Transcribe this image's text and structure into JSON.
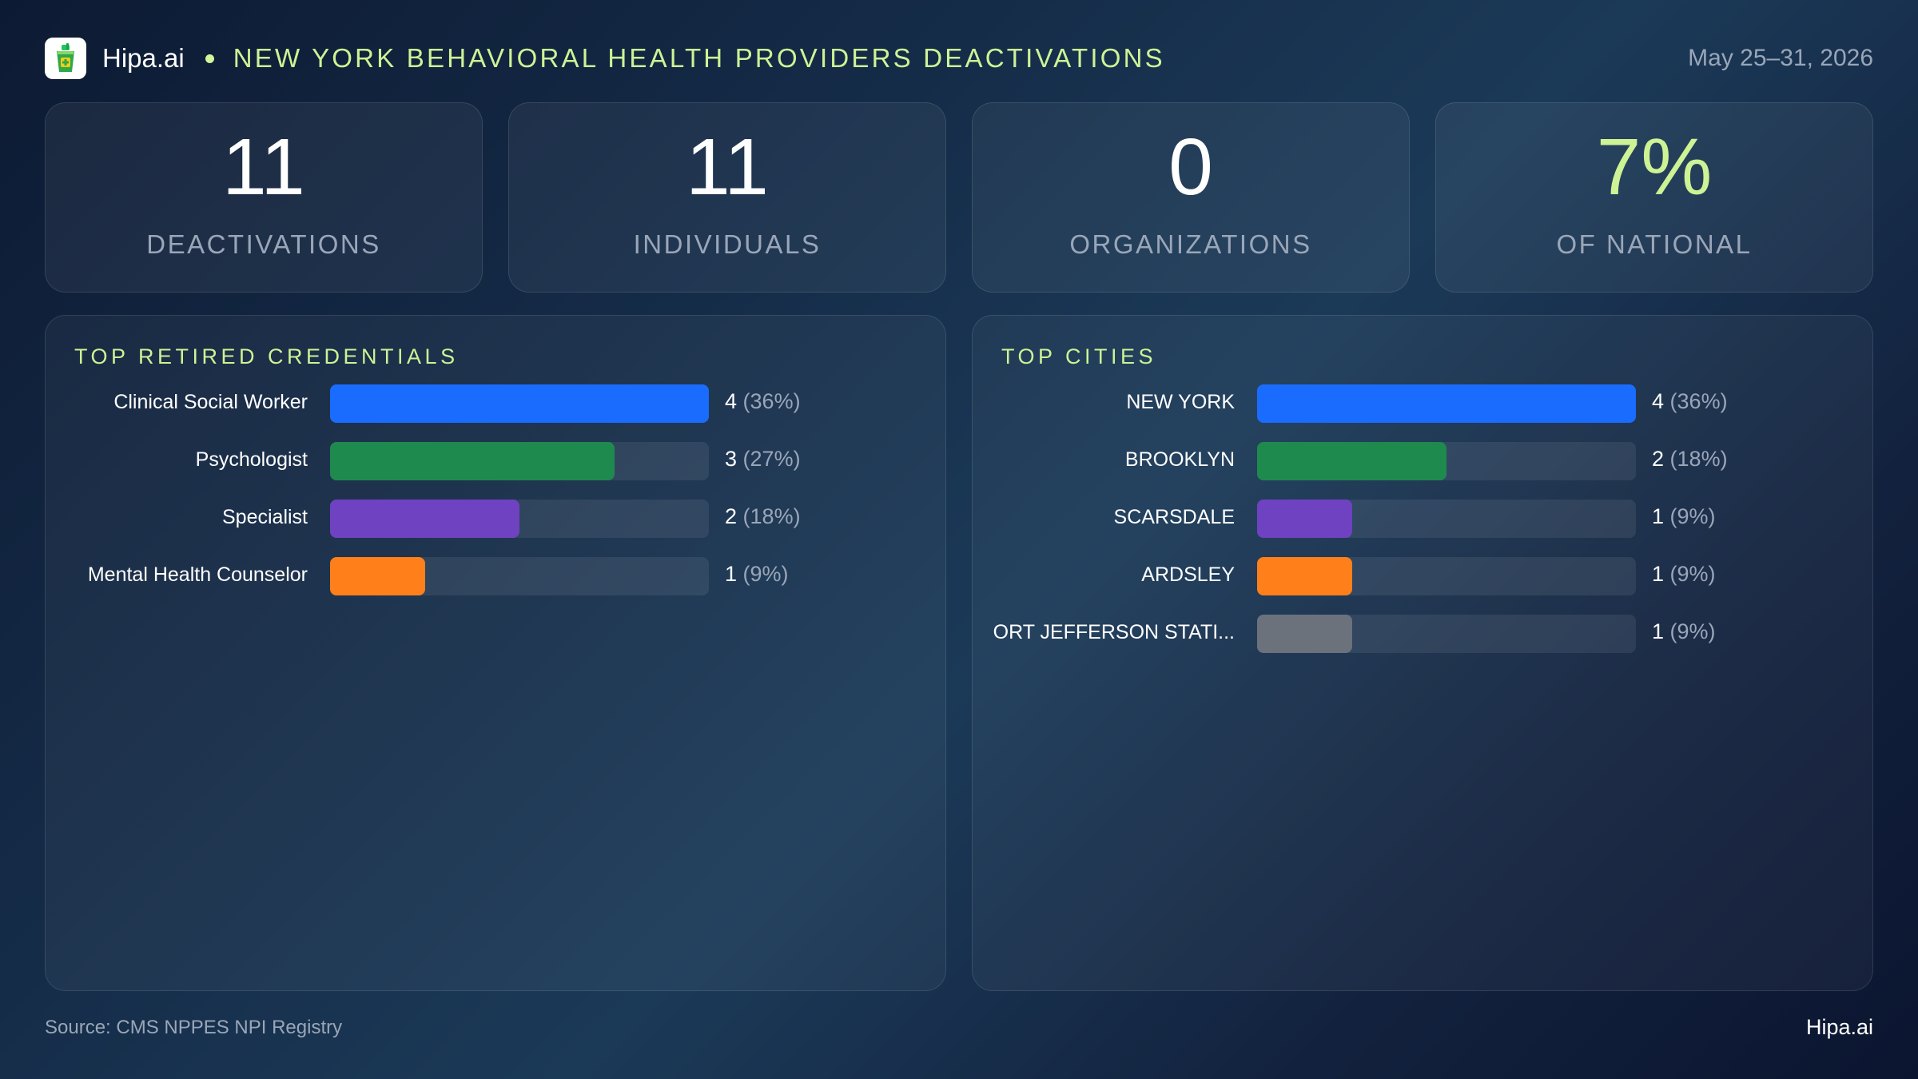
{
  "header": {
    "brand": "Hipa.ai",
    "title": "NEW YORK BEHAVIORAL HEALTH PROVIDERS DEACTIVATIONS",
    "date_range": "May 25–31, 2026",
    "logo_icon": "medicine-cup-icon"
  },
  "kpis": [
    {
      "value": "11",
      "label": "DEACTIVATIONS",
      "accent": false
    },
    {
      "value": "11",
      "label": "INDIVIDUALS",
      "accent": false
    },
    {
      "value": "0",
      "label": "ORGANIZATIONS",
      "accent": false
    },
    {
      "value": "7%",
      "label": "OF NATIONAL",
      "accent": true
    }
  ],
  "colors": {
    "accent": "#cdf395",
    "blue": "#1a6cff",
    "green": "#1e8a4e",
    "purple": "#6f42c1",
    "orange": "#ff7f1a",
    "gray": "#6b727c"
  },
  "chart_data": [
    {
      "type": "bar",
      "orientation": "horizontal",
      "title": "TOP RETIRED CREDENTIALS",
      "categories": [
        "Clinical Social Worker",
        "Psychologist",
        "Specialist",
        "Mental Health Counselor"
      ],
      "values": [
        4,
        3,
        2,
        1
      ],
      "value_labels": [
        "4",
        "3",
        "2",
        "1"
      ],
      "percent_labels": [
        "(36%)",
        "(27%)",
        "(18%)",
        "(9%)"
      ],
      "bar_colors": [
        "#1a6cff",
        "#1e8a4e",
        "#6f42c1",
        "#ff7f1a"
      ],
      "xlim": [
        0,
        4
      ]
    },
    {
      "type": "bar",
      "orientation": "horizontal",
      "title": "TOP CITIES",
      "categories": [
        "NEW YORK",
        "BROOKLYN",
        "SCARSDALE",
        "ARDSLEY",
        "ORT JEFFERSON STATI..."
      ],
      "values": [
        4,
        2,
        1,
        1,
        1
      ],
      "value_labels": [
        "4",
        "2",
        "1",
        "1",
        "1"
      ],
      "percent_labels": [
        "(36%)",
        "(18%)",
        "(9%)",
        "(9%)",
        "(9%)"
      ],
      "bar_colors": [
        "#1a6cff",
        "#1e8a4e",
        "#6f42c1",
        "#ff7f1a",
        "#6b727c"
      ],
      "xlim": [
        0,
        4
      ]
    }
  ],
  "footer": {
    "source": "Source: CMS NPPES NPI Registry",
    "brand": "Hipa.ai"
  }
}
